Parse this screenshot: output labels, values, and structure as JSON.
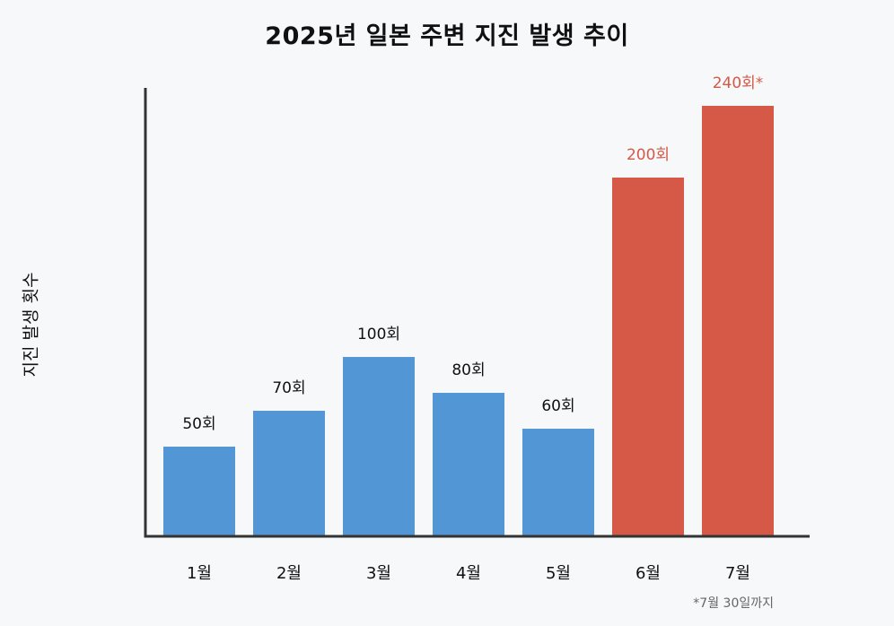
{
  "chart_data": {
    "type": "bar",
    "title": "2025년 일본 주변 지진 발생 추이",
    "ylabel": "지진 발생 횟수",
    "xlabel": "",
    "categories": [
      "1월",
      "2월",
      "3월",
      "4월",
      "5월",
      "6월",
      "7월"
    ],
    "values": [
      50,
      70,
      100,
      80,
      60,
      200,
      240
    ],
    "value_labels": [
      "50회",
      "70회",
      "100회",
      "80회",
      "60회",
      "200회",
      "240회*"
    ],
    "highlight": [
      false,
      false,
      false,
      false,
      false,
      true,
      true
    ],
    "ylim": [
      0,
      250
    ],
    "grid": false,
    "footnote": "*7월 30일까지",
    "colors": {
      "normal": "#5396d6",
      "highlight": "#d65846",
      "normal_label": "#111111",
      "highlight_label": "#d65846",
      "axis": "#333333"
    }
  }
}
